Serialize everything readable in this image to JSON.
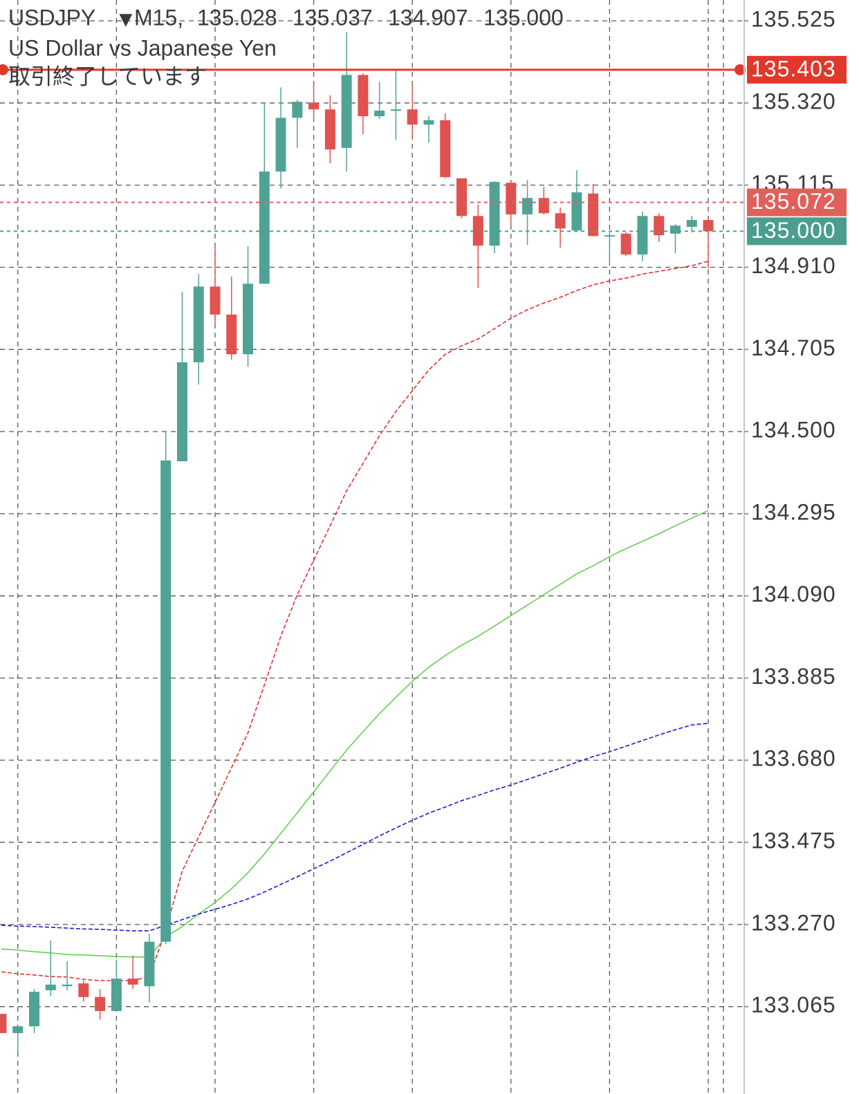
{
  "header": {
    "symbol": "USDJPY",
    "timeframe": "M15,",
    "ohlc": [
      "135.028",
      "135.037",
      "134.907",
      "135.000"
    ],
    "description": "US Dollar vs Japanese Yen",
    "status": "取引終了しています"
  },
  "chart_data": {
    "type": "candlestick",
    "categories": [
      null,
      null,
      null,
      null,
      null,
      null,
      null,
      null,
      null,
      null,
      null,
      null,
      null,
      null,
      null,
      null,
      null,
      null,
      null,
      null,
      null,
      null,
      null,
      null,
      null,
      null,
      null,
      null,
      null,
      null,
      null,
      null,
      null,
      null,
      null,
      null,
      null,
      null,
      null,
      null,
      null,
      null,
      null,
      null
    ],
    "open": [
      133.047,
      132.999,
      133.016,
      133.106,
      133.116,
      133.123,
      133.089,
      133.054,
      133.135,
      133.116,
      133.227,
      134.426,
      134.673,
      134.862,
      134.792,
      134.693,
      134.869,
      135.149,
      135.283,
      135.321,
      135.304,
      135.208,
      135.39,
      135.287,
      135.301,
      135.304,
      135.266,
      135.277,
      135.132,
      135.038,
      134.964,
      135.121,
      135.042,
      135.083,
      135.045,
      135.002,
      135.094,
      134.988,
      134.994,
      134.942,
      135.038,
      134.994,
      135.011,
      135.028
    ],
    "high": [
      133.047,
      133.016,
      133.109,
      133.23,
      133.178,
      133.13,
      133.109,
      133.182,
      133.192,
      133.247,
      134.498,
      134.849,
      134.893,
      134.966,
      134.887,
      134.962,
      135.321,
      135.359,
      135.328,
      135.366,
      135.339,
      135.497,
      135.394,
      135.373,
      135.404,
      135.363,
      135.287,
      135.294,
      135.132,
      135.066,
      135.125,
      135.125,
      135.128,
      135.111,
      135.059,
      135.152,
      135.118,
      134.997,
      134.997,
      135.049,
      135.045,
      135.018,
      135.038,
      135.037
    ],
    "low": [
      132.999,
      132.95,
      132.999,
      133.092,
      133.106,
      133.078,
      133.033,
      133.054,
      133.109,
      133.075,
      133.221,
      134.426,
      134.617,
      134.769,
      134.68,
      134.662,
      134.869,
      135.107,
      135.208,
      135.28,
      135.17,
      135.149,
      135.242,
      135.28,
      135.228,
      135.232,
      135.221,
      135.132,
      135.032,
      134.859,
      134.945,
      135.014,
      134.966,
      135.042,
      134.959,
      134.999,
      134.987,
      134.918,
      134.938,
      134.925,
      134.973,
      134.945,
      134.997,
      134.907
    ],
    "close": [
      132.999,
      133.016,
      133.102,
      133.12,
      133.12,
      133.089,
      133.054,
      133.135,
      133.12,
      133.227,
      134.428,
      134.673,
      134.862,
      134.792,
      134.693,
      134.869,
      135.149,
      135.283,
      135.323,
      135.304,
      135.204,
      135.39,
      135.287,
      135.301,
      135.304,
      135.266,
      135.277,
      135.135,
      135.038,
      134.964,
      135.123,
      135.042,
      135.083,
      135.045,
      135.007,
      135.097,
      134.988,
      134.99,
      134.942,
      135.038,
      134.99,
      135.014,
      135.028,
      135.0
    ],
    "up_color": "#50a294",
    "down_color": "#e0524f",
    "lines": [
      {
        "color": "#e03030",
        "style": "dashed",
        "values": [
          133.152,
          133.147,
          133.144,
          133.14,
          133.139,
          133.133,
          133.13,
          133.13,
          133.13,
          133.14,
          133.256,
          133.403,
          133.489,
          133.575,
          133.661,
          133.748,
          133.868,
          133.989,
          134.093,
          134.179,
          134.265,
          134.352,
          134.421,
          134.49,
          134.55,
          134.602,
          134.654,
          134.693,
          134.714,
          134.731,
          134.757,
          134.783,
          134.804,
          134.821,
          134.835,
          134.852,
          134.866,
          134.876,
          134.883,
          134.893,
          134.9,
          134.907,
          134.914,
          134.925
        ]
      },
      {
        "color": "#66cc55",
        "style": "solid",
        "values": [
          133.209,
          133.206,
          133.202,
          133.199,
          133.195,
          133.194,
          133.192,
          133.19,
          133.189,
          133.189,
          133.239,
          133.265,
          133.296,
          133.325,
          133.359,
          133.399,
          133.446,
          133.497,
          133.549,
          133.601,
          133.653,
          133.705,
          133.751,
          133.796,
          133.837,
          133.877,
          133.912,
          133.941,
          133.967,
          133.989,
          134.015,
          134.041,
          134.067,
          134.093,
          134.119,
          134.145,
          134.165,
          134.188,
          134.208,
          134.226,
          134.245,
          134.265,
          134.284,
          134.303
        ]
      },
      {
        "color": "#1a1ad0",
        "style": "dashed",
        "values": [
          133.268,
          133.266,
          133.265,
          133.263,
          133.261,
          133.259,
          133.258,
          133.256,
          133.254,
          133.254,
          133.268,
          133.282,
          133.296,
          133.308,
          133.32,
          133.334,
          133.351,
          133.37,
          133.389,
          133.409,
          133.428,
          133.449,
          133.47,
          133.491,
          133.511,
          133.53,
          133.548,
          133.563,
          133.579,
          133.592,
          133.606,
          133.618,
          133.632,
          133.646,
          133.66,
          133.675,
          133.689,
          133.701,
          133.715,
          133.729,
          133.743,
          133.756,
          133.768,
          133.772
        ]
      }
    ],
    "price_lines": [
      {
        "value": 135.403,
        "label": "135.403",
        "color": "#e0392b",
        "style": "solid"
      },
      {
        "value": 135.072,
        "label": "135.072",
        "color": "#e0605a",
        "style": "dashed"
      },
      {
        "value": 135.0,
        "label": "135.000",
        "color": "#4b9d8f",
        "style": "dashed"
      }
    ],
    "ylim": [
      132.847,
      135.577
    ],
    "yticks": [
      135.525,
      {
        "value": 135.32,
        "label": "135.320"
      },
      135.115,
      {
        "value": 134.91,
        "label": "134.910"
      },
      134.705,
      {
        "value": 134.5,
        "label": "134.500"
      },
      134.295,
      {
        "value": 134.09,
        "label": "134.090"
      },
      133.885,
      {
        "value": 133.68,
        "label": "133.680"
      },
      133.475,
      {
        "value": 133.27,
        "label": "133.270"
      },
      133.065
    ],
    "grid": true
  }
}
